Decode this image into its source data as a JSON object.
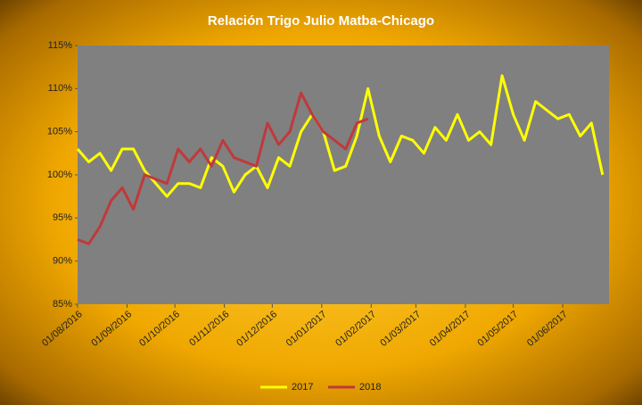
{
  "chart_data": {
    "type": "line",
    "title": "Relación Trigo Julio Matba-Chicago",
    "x": [
      "2016-08-01",
      "2016-08-08",
      "2016-08-15",
      "2016-08-22",
      "2016-08-29",
      "2016-09-05",
      "2016-09-12",
      "2016-09-19",
      "2016-09-26",
      "2016-10-03",
      "2016-10-10",
      "2016-10-17",
      "2016-10-24",
      "2016-10-31",
      "2016-11-07",
      "2016-11-14",
      "2016-11-21",
      "2016-11-28",
      "2016-12-05",
      "2016-12-12",
      "2016-12-19",
      "2016-12-26",
      "2017-01-02",
      "2017-01-09",
      "2017-01-16",
      "2017-01-23",
      "2017-01-30",
      "2017-02-06",
      "2017-02-13",
      "2017-02-20",
      "2017-02-27",
      "2017-03-06",
      "2017-03-13",
      "2017-03-20",
      "2017-03-27",
      "2017-04-03",
      "2017-04-10",
      "2017-04-17",
      "2017-04-24",
      "2017-05-01",
      "2017-05-08",
      "2017-05-15",
      "2017-05-22",
      "2017-05-29",
      "2017-06-05",
      "2017-06-12",
      "2017-06-19",
      "2017-06-26"
    ],
    "series": [
      {
        "name": "2017",
        "color": "#ffff00",
        "values": [
          103,
          101.5,
          102.5,
          100.5,
          103,
          103,
          100.5,
          99,
          97.5,
          99,
          99,
          98.5,
          102,
          101,
          98,
          100,
          101,
          98.5,
          102,
          101,
          105,
          107,
          105,
          100.5,
          101,
          104.5,
          110,
          104.5,
          101.5,
          104.5,
          104,
          102.5,
          105.5,
          104,
          107,
          104,
          105,
          103.5,
          111.5,
          107,
          104,
          108.5,
          107.5,
          106.5,
          107,
          104.5,
          106,
          100
        ]
      },
      {
        "name": "2018",
        "color": "#c0393b",
        "values": [
          92.5,
          92,
          94,
          97,
          98.5,
          96,
          100,
          99.5,
          99,
          103,
          101.5,
          103,
          101,
          104,
          102,
          101.5,
          101,
          106,
          103.5,
          105,
          109.5,
          107,
          105,
          104,
          103,
          106,
          106.5,
          null,
          null,
          null,
          null,
          null,
          null,
          null,
          null,
          null,
          null,
          null,
          null,
          null,
          null,
          null,
          null,
          null,
          null,
          null,
          null,
          null
        ]
      }
    ],
    "xlim": [
      "2016-08-01",
      "2017-06-30"
    ],
    "xticks": [
      {
        "value": "2016-08-01",
        "label": "01/08/2016"
      },
      {
        "value": "2016-09-01",
        "label": "01/09/2016"
      },
      {
        "value": "2016-10-01",
        "label": "01/10/2016"
      },
      {
        "value": "2016-11-01",
        "label": "01/11/2016"
      },
      {
        "value": "2016-12-01",
        "label": "01/12/2016"
      },
      {
        "value": "2017-01-01",
        "label": "01/01/2017"
      },
      {
        "value": "2017-02-01",
        "label": "01/02/2017"
      },
      {
        "value": "2017-03-01",
        "label": "01/03/2017"
      },
      {
        "value": "2017-04-01",
        "label": "01/04/2017"
      },
      {
        "value": "2017-05-01",
        "label": "01/05/2017"
      },
      {
        "value": "2017-06-01",
        "label": "01/06/2017"
      }
    ],
    "ylim": [
      85,
      115
    ],
    "yticks": [
      {
        "value": 85,
        "label": "85%"
      },
      {
        "value": 90,
        "label": "90%"
      },
      {
        "value": 95,
        "label": "95%"
      },
      {
        "value": 100,
        "label": "100%"
      },
      {
        "value": 105,
        "label": "105%"
      },
      {
        "value": 110,
        "label": "110%"
      },
      {
        "value": 115,
        "label": "115%"
      }
    ],
    "grid": false,
    "legend": "bottom",
    "plot_background": "#808080"
  }
}
